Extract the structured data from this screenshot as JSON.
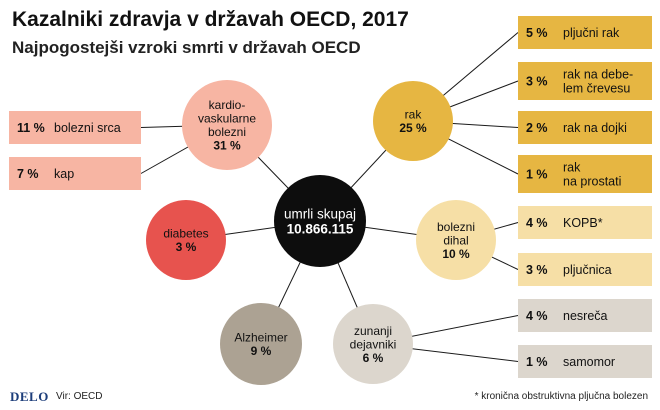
{
  "header": {
    "title": "Kazalniki zdravja v državah OECD, 2017",
    "subtitle": "Najpogostejši vzroki smrti v državah OECD"
  },
  "center": {
    "lines": [
      "umrli skupaj",
      "10.866.115"
    ],
    "color": "#0d0d0d"
  },
  "causes": [
    {
      "id": "kardio",
      "lines": [
        "kardio-",
        "vaskularne",
        "bolezni",
        "31 %"
      ],
      "color": "#f7b5a3"
    },
    {
      "id": "rak",
      "lines": [
        "rak",
        "25 %"
      ],
      "color": "#e6b642"
    },
    {
      "id": "dihal",
      "lines": [
        "bolezni",
        "dihal",
        "10 %"
      ],
      "color": "#f6dfa6"
    },
    {
      "id": "diabetes",
      "lines": [
        "diabetes",
        "3 %"
      ],
      "color": "#e7534e"
    },
    {
      "id": "alzheimer",
      "lines": [
        "Alzheimer",
        "9 %"
      ],
      "color": "#aca293"
    },
    {
      "id": "zunanji",
      "lines": [
        "zunanji",
        "dejavniki",
        "6 %"
      ],
      "color": "#dcd6cd"
    }
  ],
  "subcauses": [
    {
      "parent": "kardio",
      "pct": "11 %",
      "label": [
        "bolezni srca"
      ],
      "color": "#f7b5a3"
    },
    {
      "parent": "kardio",
      "pct": "7 %",
      "label": [
        "kap"
      ],
      "color": "#f7b5a3"
    },
    {
      "parent": "rak",
      "pct": "5 %",
      "label": [
        "pljučni rak"
      ],
      "color": "#e6b642"
    },
    {
      "parent": "rak",
      "pct": "3 %",
      "label": [
        "rak na debe-",
        "lem črevesu"
      ],
      "color": "#e6b642"
    },
    {
      "parent": "rak",
      "pct": "2 %",
      "label": [
        "rak na dojki"
      ],
      "color": "#e6b642"
    },
    {
      "parent": "rak",
      "pct": "1 %",
      "label": [
        "rak",
        "na prostati"
      ],
      "color": "#e6b642"
    },
    {
      "parent": "dihal",
      "pct": "4 %",
      "label": [
        "KOPB*"
      ],
      "color": "#f6dfa6"
    },
    {
      "parent": "dihal",
      "pct": "3 %",
      "label": [
        "pljučnica"
      ],
      "color": "#f6dfa6"
    },
    {
      "parent": "zunanji",
      "pct": "4 %",
      "label": [
        "nesreča"
      ],
      "color": "#dcd6cd"
    },
    {
      "parent": "zunanji",
      "pct": "1 %",
      "label": [
        "samomor"
      ],
      "color": "#dcd6cd"
    }
  ],
  "footer": {
    "logo": "DELO",
    "source": "Vir: OECD",
    "note": "* kronična obstruktivna pljučna bolezen"
  }
}
